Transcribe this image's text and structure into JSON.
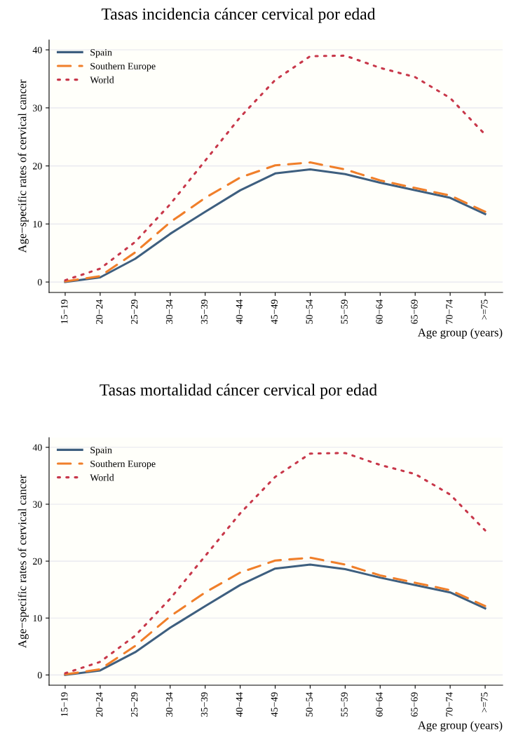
{
  "chart_data": [
    {
      "type": "line",
      "title": "Tasas incidencia cáncer cervical por edad",
      "xlabel": "Age group (years)",
      "ylabel": "Age−specific rates of cervical cancer",
      "categories": [
        "15−19",
        "20−24",
        "25−29",
        "30−34",
        "35−39",
        "40−44",
        "45−49",
        "50−54",
        "55−59",
        "60−64",
        "65−69",
        "70−74",
        ">=75"
      ],
      "series": [
        {
          "name": "Spain",
          "color": "#3e5f7f",
          "line_style": "solid",
          "values": [
            0,
            0.8,
            4.0,
            8.3,
            12.1,
            15.8,
            18.7,
            19.4,
            18.6,
            17.1,
            15.8,
            14.5,
            11.7
          ]
        },
        {
          "name": "Southern Europe",
          "color": "#f07f2a",
          "line_style": "dashed",
          "values": [
            0.1,
            1.0,
            5.1,
            10.3,
            14.5,
            18.0,
            20.1,
            20.6,
            19.4,
            17.5,
            16.2,
            14.9,
            12.1
          ]
        },
        {
          "name": "World",
          "color": "#c8384a",
          "line_style": "dotted",
          "values": [
            0.3,
            2.3,
            6.9,
            13.4,
            20.9,
            28.4,
            34.8,
            38.9,
            39.0,
            36.9,
            35.3,
            31.7,
            25.4
          ]
        }
      ],
      "ylim": [
        -1.8,
        41.7
      ],
      "yticks": [
        0,
        10,
        20,
        30,
        40
      ],
      "grid": "y",
      "legend": "top left",
      "marker": "none"
    },
    {
      "type": "line",
      "title": "Tasas mortalidad cáncer cervical por edad",
      "xlabel": "Age group (years)",
      "ylabel": "Age−specific rates of cervical cancer",
      "categories": [
        "15−19",
        "20−24",
        "25−29",
        "30−34",
        "35−39",
        "40−44",
        "45−49",
        "50−54",
        "55−59",
        "60−64",
        "65−69",
        "70−74",
        ">=75"
      ],
      "series": [
        {
          "name": "Spain",
          "color": "#3e5f7f",
          "line_style": "solid",
          "values": [
            0,
            0.8,
            4.0,
            8.3,
            12.1,
            15.8,
            18.7,
            19.4,
            18.6,
            17.1,
            15.8,
            14.5,
            11.7
          ]
        },
        {
          "name": "Southern Europe",
          "color": "#f07f2a",
          "line_style": "dashed",
          "values": [
            0.1,
            1.0,
            5.1,
            10.3,
            14.5,
            18.0,
            20.1,
            20.6,
            19.4,
            17.5,
            16.2,
            14.9,
            12.1
          ]
        },
        {
          "name": "World",
          "color": "#c8384a",
          "line_style": "dotted",
          "values": [
            0.3,
            2.3,
            6.9,
            13.4,
            20.9,
            28.4,
            34.8,
            38.9,
            39.0,
            36.9,
            35.3,
            31.7,
            25.4
          ]
        }
      ],
      "ylim": [
        -1.8,
        41.7
      ],
      "yticks": [
        0,
        10,
        20,
        30,
        40
      ],
      "grid": "y",
      "legend": "top left",
      "marker": "none"
    }
  ]
}
